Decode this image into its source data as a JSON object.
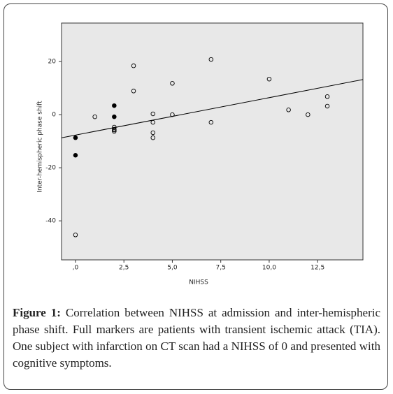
{
  "chart_data": {
    "type": "scatter",
    "x_label": "NIHSS",
    "y_label": "Inter-hemispheric phase shift",
    "xlim": [
      -0.72,
      14.84
    ],
    "ylim": [
      -54.7,
      34.5
    ],
    "xticks": [
      {
        "value": 0,
        "label": ",0"
      },
      {
        "value": 2.5,
        "label": "2,5"
      },
      {
        "value": 5,
        "label": "5,0"
      },
      {
        "value": 7.5,
        "label": "7,5"
      },
      {
        "value": 10,
        "label": "10,0"
      },
      {
        "value": 12.5,
        "label": "12,5"
      }
    ],
    "yticks": [
      -40,
      -20,
      0,
      20
    ],
    "series": [
      {
        "marker": "open",
        "color": "#000000",
        "x": [
          0,
          1,
          2,
          2,
          2,
          2,
          3,
          3,
          4,
          4,
          4,
          4,
          5,
          5,
          7,
          7,
          10,
          11,
          12,
          13,
          13
        ],
        "values": [
          -45.3,
          -0.8,
          -4.7,
          -5.5,
          -5.8,
          -6.3,
          18.4,
          8.9,
          0.3,
          -2.9,
          -6.8,
          -8.7,
          11.8,
          0,
          20.8,
          -2.9,
          13.4,
          1.8,
          0,
          6.8,
          3.2
        ]
      },
      {
        "marker": "filled",
        "color": "#000000",
        "x": [
          0,
          0,
          2,
          2
        ],
        "values": [
          -8.7,
          -15.3,
          3.4,
          -0.8
        ]
      }
    ],
    "trendline": {
      "slope": 1.41,
      "intercept": -7.7,
      "color": "#000000"
    }
  },
  "caption": {
    "label": "Figure 1:",
    "text": "Correlation between NIHSS at admission and inter-hemispheric phase shift. Full markers are patients with transient ischemic attack (TIA). One subject with infarction on CT scan had a NIHSS of 0 and presented with cognitive symptoms."
  }
}
